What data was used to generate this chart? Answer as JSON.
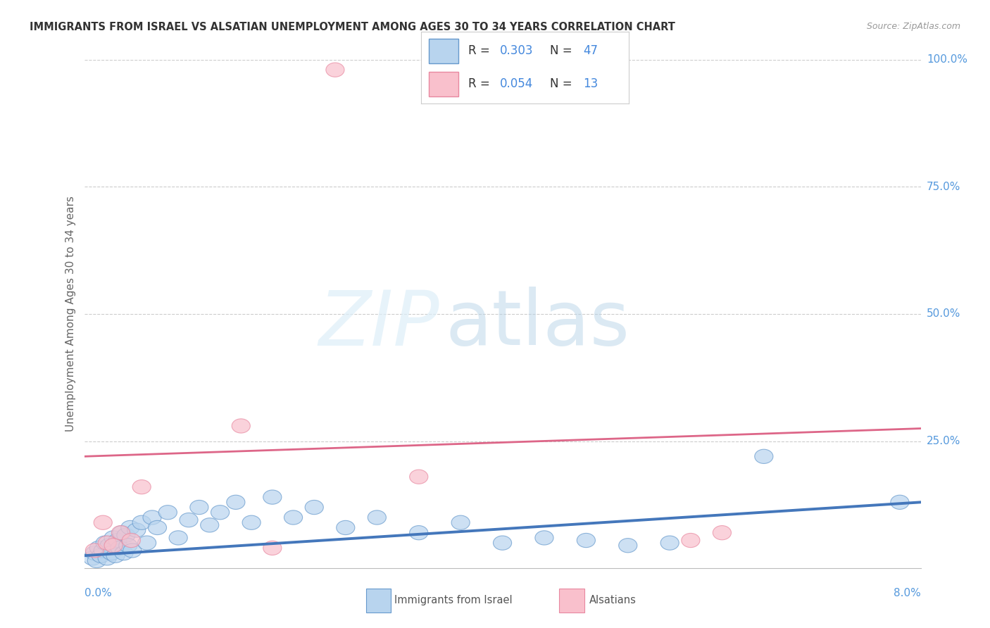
{
  "title": "IMMIGRANTS FROM ISRAEL VS ALSATIAN UNEMPLOYMENT AMONG AGES 30 TO 34 YEARS CORRELATION CHART",
  "source": "Source: ZipAtlas.com",
  "ylabel": "Unemployment Among Ages 30 to 34 years",
  "xmin": 0.0,
  "xmax": 8.0,
  "ymin": 0.0,
  "ymax": 100.0,
  "ytick_vals": [
    25,
    50,
    75,
    100
  ],
  "ytick_labels": [
    "25.0%",
    "50.0%",
    "75.0%",
    "100.0%"
  ],
  "blue_R": 0.303,
  "blue_N": 47,
  "pink_R": 0.054,
  "pink_N": 13,
  "blue_fill": "#b8d4ee",
  "blue_edge": "#6699cc",
  "pink_fill": "#f9c0cc",
  "pink_edge": "#e888a0",
  "blue_line": "#4477bb",
  "pink_line": "#dd6688",
  "right_label_color": "#5599dd",
  "title_color": "#333333",
  "grid_color": "#cccccc",
  "blue_points_x": [
    0.08,
    0.1,
    0.12,
    0.14,
    0.16,
    0.18,
    0.2,
    0.22,
    0.24,
    0.26,
    0.28,
    0.3,
    0.32,
    0.34,
    0.36,
    0.38,
    0.4,
    0.42,
    0.44,
    0.46,
    0.5,
    0.55,
    0.6,
    0.65,
    0.7,
    0.8,
    0.9,
    1.0,
    1.1,
    1.2,
    1.3,
    1.45,
    1.6,
    1.8,
    2.0,
    2.2,
    2.5,
    2.8,
    3.2,
    3.6,
    4.0,
    4.4,
    4.8,
    5.2,
    5.6,
    6.5,
    7.8
  ],
  "blue_points_y": [
    2.0,
    3.0,
    1.5,
    4.0,
    2.5,
    3.5,
    5.0,
    2.0,
    4.5,
    3.0,
    6.0,
    2.5,
    5.5,
    4.0,
    7.0,
    3.0,
    6.5,
    4.5,
    8.0,
    3.5,
    7.5,
    9.0,
    5.0,
    10.0,
    8.0,
    11.0,
    6.0,
    9.5,
    12.0,
    8.5,
    11.0,
    13.0,
    9.0,
    14.0,
    10.0,
    12.0,
    8.0,
    10.0,
    7.0,
    9.0,
    5.0,
    6.0,
    5.5,
    4.5,
    5.0,
    22.0,
    13.0
  ],
  "pink_points_x": [
    0.1,
    0.18,
    0.22,
    0.28,
    0.35,
    0.45,
    0.55,
    1.5,
    1.8,
    2.4,
    3.2,
    5.8,
    6.1
  ],
  "pink_points_y": [
    3.5,
    9.0,
    5.0,
    4.5,
    7.0,
    5.5,
    16.0,
    28.0,
    4.0,
    98.0,
    18.0,
    5.5,
    7.0
  ],
  "blue_trend_y0": 2.5,
  "blue_trend_y1": 13.0,
  "pink_trend_y0": 22.0,
  "pink_trend_y1": 27.5,
  "legend_R_color": "#333333",
  "legend_N_color": "#4488dd"
}
